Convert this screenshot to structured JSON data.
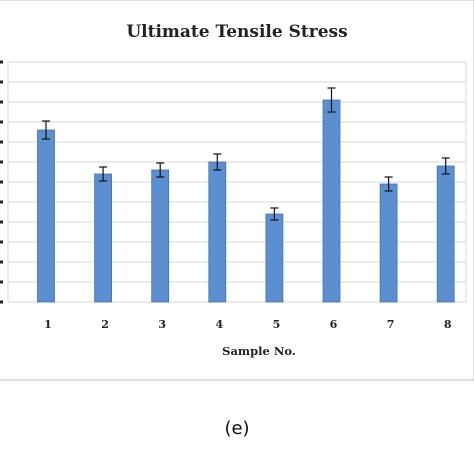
{
  "caption": "(e)",
  "colors": {
    "bar": "#5b8fd0",
    "bar_edge": "#3f74b8",
    "grid": "#d9d9d9",
    "frame": "#bfbfbf",
    "error_bar": "#111111"
  },
  "chart_data": {
    "type": "bar",
    "title": "Ultimate Tensile Stress",
    "xlabel": "Sample No.",
    "ylabel": "",
    "categories": [
      "1",
      "2",
      "3",
      "4",
      "5",
      "6",
      "7",
      "8"
    ],
    "values": [
      8.6,
      6.4,
      6.6,
      7.0,
      4.4,
      10.1,
      5.9,
      6.8
    ],
    "errors": [
      0.45,
      0.35,
      0.35,
      0.4,
      0.3,
      0.6,
      0.35,
      0.4
    ],
    "ylim": [
      0,
      12
    ],
    "y_gridlines": 12,
    "grid": true,
    "legend": "none"
  }
}
